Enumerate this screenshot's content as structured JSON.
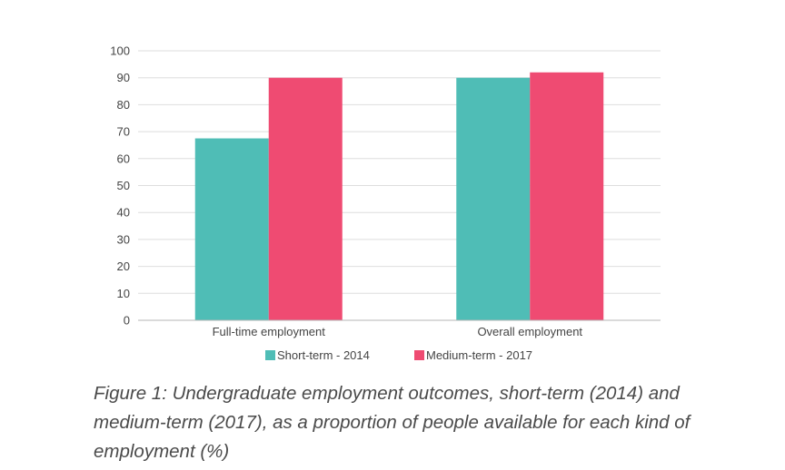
{
  "chart_data": {
    "type": "bar",
    "categories": [
      "Full-time employment",
      "Overall employment"
    ],
    "series": [
      {
        "name": "Short-term - 2014",
        "values": [
          67.5,
          90
        ],
        "color": "#4fbdb6"
      },
      {
        "name": "Medium-term - 2017",
        "values": [
          90,
          92
        ],
        "color": "#ef4b72"
      }
    ],
    "yticks": [
      "0",
      "10",
      "20",
      "30",
      "40",
      "50",
      "60",
      "70",
      "80",
      "90",
      "100"
    ],
    "ylim": [
      0,
      100
    ],
    "grid": true,
    "legend_position": "bottom"
  },
  "caption": "Figure 1: Undergraduate employment outcomes, short-term (2014) and medium-term (2017), as a proportion of people available for each kind of employment (%)"
}
